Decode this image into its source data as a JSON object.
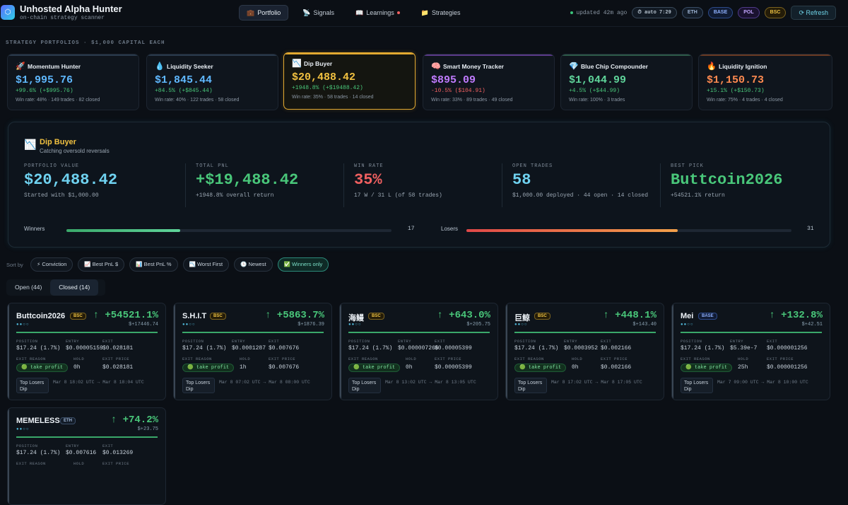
{
  "header": {
    "logo_glyph": "⬡",
    "title": "Unhosted Alpha Hunter",
    "subtitle": "on-chain strategy scanner",
    "tabs": [
      {
        "icon": "💼",
        "label": "Portfolio",
        "active": true
      },
      {
        "icon": "📡",
        "label": "Signals"
      },
      {
        "icon": "📖",
        "label": "Learnings",
        "has_dot": true
      },
      {
        "icon": "📁",
        "label": "Strategies"
      }
    ],
    "updated": "updated 42m ago",
    "auto": "⏱ auto 7:29",
    "chains": [
      "ETH",
      "BASE",
      "POL",
      "BSC"
    ],
    "refresh": "⟳ Refresh"
  },
  "section_label": "STRATEGY PORTFOLIOS · $1,000 CAPITAL EACH",
  "strategies": [
    {
      "icon": "🚀",
      "name": "Momentum Hunter",
      "value": "$1,995.76",
      "change": "+99.6% (+$995.76)",
      "stats": "Win rate: 48% · 149 trades · 82 closed",
      "color": "#5fb8ff",
      "change_color": "#49c77a",
      "accent": "#2a3a4c"
    },
    {
      "icon": "💧",
      "name": "Liquidity Seeker",
      "value": "$1,845.44",
      "change": "+84.5% (+$845.44)",
      "stats": "Win rate: 40% · 122 trades · 58 closed",
      "color": "#5fb8ff",
      "change_color": "#49c77a",
      "accent": "#2a3a4c"
    },
    {
      "icon": "📉",
      "name": "Dip Buyer",
      "value": "$20,488.42",
      "change": "+1948.8% (+$19488.42)",
      "stats": "Win rate: 35% · 58 trades · 14 closed",
      "color": "#f0c040",
      "change_color": "#49c77a",
      "accent": "#e2a931"
    },
    {
      "icon": "🧠",
      "name": "Smart Money Tracker",
      "value": "$895.09",
      "change": "-10.5% ($104.91)",
      "stats": "Win rate: 33% · 89 trades · 49 closed",
      "color": "#c07bff",
      "change_color": "#f06060",
      "accent": "#5b3a8a"
    },
    {
      "icon": "💎",
      "name": "Blue Chip Compounder",
      "value": "$1,044.99",
      "change": "+4.5% (+$44.99)",
      "stats": "Win rate: 100% · 3 trades",
      "color": "#5fd49a",
      "change_color": "#49c77a",
      "accent": "#2d5a48"
    },
    {
      "icon": "🔥",
      "name": "Liquidity Ignition",
      "value": "$1,150.73",
      "change": "+15.1% (+$150.73)",
      "stats": "Win rate: 75% · 4 trades · 4 closed",
      "color": "#ff8a50",
      "change_color": "#49c77a",
      "accent": "#6a3a22"
    }
  ],
  "detail": {
    "icon": "📉",
    "name": "Dip Buyer",
    "subtitle": "Catching oversold reversals",
    "stats": [
      {
        "label": "PORTFOLIO VALUE",
        "value": "$20,488.42",
        "sub": "Started with $1,000.00",
        "color": "#6fd2f0"
      },
      {
        "label": "TOTAL PNL",
        "value": "+$19,488.42",
        "sub": "+1948.8% overall return",
        "color": "#49c77a"
      },
      {
        "label": "WIN RATE",
        "value": "35%",
        "sub": "17 W / 31 L (of 58 trades)",
        "color": "#f06060"
      },
      {
        "label": "OPEN TRADES",
        "value": "58",
        "sub": "$1,000.00 deployed · 44 open · 14 closed",
        "color": "#6fd2f0"
      },
      {
        "label": "BEST PICK",
        "value": "Buttcoin2026",
        "sub": "+54521.1% return",
        "color": "#49c77a"
      }
    ],
    "winners_label": "Winners",
    "winners_count": "17",
    "winners_fraction": 0.35,
    "losers_label": "Losers",
    "losers_count": "31",
    "losers_fraction": 0.65
  },
  "sort": {
    "label": "Sort by",
    "buttons": [
      "⚡ Conviction",
      "📈 Best PnL $",
      "📊 Best PnL %",
      "📉 Worst First",
      "🕒 Newest",
      "✅ Winners only"
    ]
  },
  "subtabs": [
    "Open (44)",
    "Closed (14)"
  ],
  "field_labels": {
    "position": "POSITION",
    "entry": "ENTRY",
    "exit": "EXIT",
    "exit_reason": "EXIT REASON",
    "hold": "HOLD",
    "exit_price": "EXIT PRICE"
  },
  "trades": [
    {
      "ticker": "Buttcoin2026",
      "chain": "BSC",
      "pct": "↑ +54521.1%",
      "usd": "$+17446.74",
      "position": "$17.24 (1.7%)",
      "entry": "$0.00005159",
      "exit": "$0.028181",
      "reason": "🟢 take profit",
      "hold": "0h",
      "exit_price": "$0.028181",
      "tag": "Top Losers Dip",
      "time": "Mar 8 18:02 UTC → Mar 8 18:04 UTC"
    },
    {
      "ticker": "S.H.I.T",
      "chain": "BSC",
      "pct": "↑ +5863.7%",
      "usd": "$+1876.39",
      "position": "$17.24 (1.7%)",
      "entry": "$0.0001287",
      "exit": "$0.007676",
      "reason": "🟢 take profit",
      "hold": "1h",
      "exit_price": "$0.007676",
      "tag": "Top Losers Dip",
      "time": "Mar 8 07:02 UTC → Mar 8 08:00 UTC"
    },
    {
      "ticker": "海鳗",
      "chain": "BSC",
      "pct": "↑ +643.0%",
      "usd": "$+205.75",
      "position": "$17.24 (1.7%)",
      "entry": "$0.000007266",
      "exit": "$0.00005399",
      "reason": "🟢 take profit",
      "hold": "0h",
      "exit_price": "$0.00005399",
      "tag": "Top Losers Dip",
      "time": "Mar 8 13:02 UTC → Mar 8 13:05 UTC"
    },
    {
      "ticker": "巨鲸",
      "chain": "BSC",
      "pct": "↑ +448.1%",
      "usd": "$+143.40",
      "position": "$17.24 (1.7%)",
      "entry": "$0.0003952",
      "exit": "$0.002166",
      "reason": "🟢 take profit",
      "hold": "0h",
      "exit_price": "$0.002166",
      "tag": "Top Losers Dip",
      "time": "Mar 8 17:02 UTC → Mar 8 17:05 UTC"
    },
    {
      "ticker": "Mei",
      "chain": "BASE",
      "pct": "↑ +132.8%",
      "usd": "$+42.51",
      "position": "$17.24 (1.7%)",
      "entry": "$5.39e-7",
      "exit": "$0.000001256",
      "reason": "🟢 take profit",
      "hold": "25h",
      "exit_price": "$0.000001256",
      "tag": "Top Losers Dip",
      "time": "Mar 7 09:00 UTC → Mar 8 10:00 UTC"
    },
    {
      "ticker": "MEMELESS",
      "chain": "ETH",
      "pct": "↑ +74.2%",
      "usd": "$+23.75",
      "position": "$17.24 (1.7%)",
      "entry": "$0.007616",
      "exit": "$0.013269",
      "reason": "",
      "hold": "",
      "exit_price": "",
      "tag": "",
      "time": ""
    }
  ]
}
